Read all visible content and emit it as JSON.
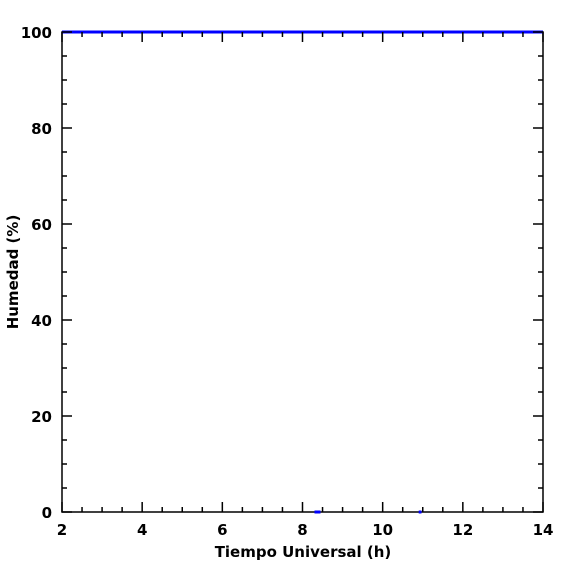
{
  "chart_data": {
    "type": "scatter",
    "xlabel": "Tiempo Universal (h)",
    "ylabel": "Humedad (%)",
    "xlim": [
      2,
      14
    ],
    "ylim": [
      0,
      100
    ],
    "x_ticks": [
      2,
      4,
      6,
      8,
      10,
      12,
      14
    ],
    "y_ticks": [
      0,
      20,
      40,
      60,
      80,
      100
    ],
    "grid": false,
    "series_color": "#0000ff",
    "series": [
      {
        "segments": [
          {
            "x": [
              2.0,
              14.0
            ],
            "y": [
              100,
              100
            ]
          },
          {
            "x": [
              8.3,
              8.45
            ],
            "y": [
              0,
              0
            ]
          },
          {
            "x": [
              10.9,
              10.97
            ],
            "y": [
              0,
              0
            ]
          }
        ]
      }
    ]
  }
}
